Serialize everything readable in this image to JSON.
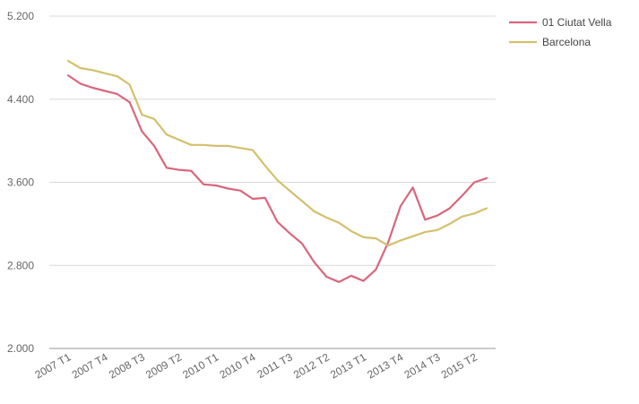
{
  "chart_data": {
    "type": "line",
    "title": "",
    "xlabel": "",
    "ylabel": "",
    "ylim": [
      2000,
      5200
    ],
    "yticks": [
      2000,
      2800,
      3600,
      4400,
      5200
    ],
    "ytick_labels": [
      "2.000",
      "2.800",
      "3.600",
      "4.400",
      "5.200"
    ],
    "grid": true,
    "legend_position": "top-right",
    "x": [
      "2007 T1",
      "2007 T2",
      "2007 T3",
      "2007 T4",
      "2008 T1",
      "2008 T2",
      "2008 T3",
      "2008 T4",
      "2009 T1",
      "2009 T2",
      "2009 T3",
      "2009 T4",
      "2010 T1",
      "2010 T2",
      "2010 T3",
      "2010 T4",
      "2011 T1",
      "2011 T2",
      "2011 T3",
      "2011 T4",
      "2012 T1",
      "2012 T2",
      "2012 T3",
      "2012 T4",
      "2013 T1",
      "2013 T2",
      "2013 T3",
      "2013 T4",
      "2014 T1",
      "2014 T2",
      "2014 T3",
      "2014 T4",
      "2015 T1",
      "2015 T2",
      "2015 T3"
    ],
    "xtick_labels": [
      "2007 T1",
      "2007 T4",
      "2008 T3",
      "2009 T2",
      "2010 T1",
      "2010 T4",
      "2011 T3",
      "2012 T2",
      "2013 T1",
      "2013 T4",
      "2014 T3",
      "2015 T2"
    ],
    "xtick_indices": [
      0,
      3,
      6,
      9,
      12,
      15,
      18,
      21,
      24,
      27,
      30,
      33
    ],
    "series": [
      {
        "name": "01 Ciutat Vella",
        "color": "#d9667c",
        "values": [
          4630,
          4550,
          4510,
          4480,
          4450,
          4370,
          4090,
          3950,
          3740,
          3720,
          3710,
          3580,
          3570,
          3540,
          3520,
          3440,
          3450,
          3220,
          3110,
          3010,
          2830,
          2690,
          2640,
          2700,
          2650,
          2760,
          3020,
          3370,
          3550,
          3240,
          3280,
          3350,
          3470,
          3600,
          3640
        ]
      },
      {
        "name": "Barcelona",
        "color": "#d3c06e",
        "values": [
          4770,
          4700,
          4680,
          4650,
          4620,
          4540,
          4250,
          4210,
          4060,
          4010,
          3960,
          3960,
          3950,
          3950,
          3930,
          3910,
          3760,
          3620,
          3520,
          3420,
          3320,
          3260,
          3210,
          3130,
          3070,
          3060,
          2990,
          3040,
          3080,
          3120,
          3140,
          3200,
          3270,
          3300,
          3350
        ]
      }
    ]
  }
}
